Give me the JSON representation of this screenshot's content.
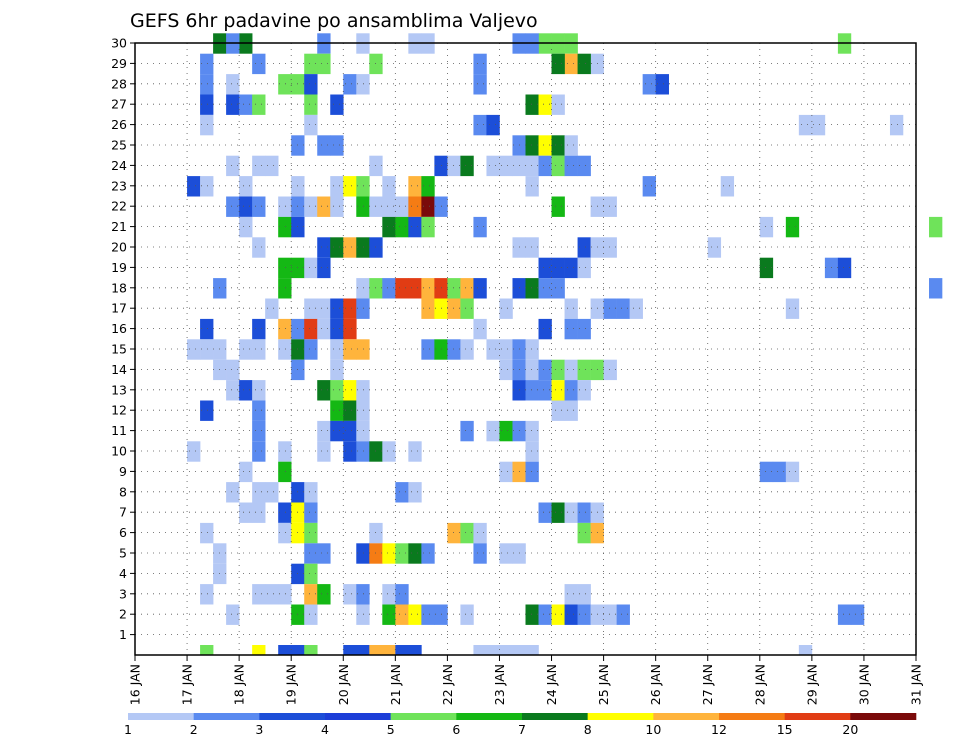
{
  "chart_data": {
    "type": "heatmap",
    "title": "GEFS 6hr padavine po ansamblima Valjevo",
    "x_tick_labels": [
      "16 JAN",
      "17 JAN",
      "18 JAN",
      "19 JAN",
      "20 JAN",
      "21 JAN",
      "22 JAN",
      "23 JAN",
      "24 JAN",
      "25 JAN",
      "26 JAN",
      "27 JAN",
      "28 JAN",
      "29 JAN",
      "30 JAN",
      "31 JAN"
    ],
    "y_tick_labels": [
      "1",
      "2",
      "3",
      "4",
      "5",
      "6",
      "7",
      "8",
      "9",
      "10",
      "11",
      "12",
      "13",
      "14",
      "15",
      "16",
      "17",
      "18",
      "19",
      "20",
      "21",
      "22",
      "23",
      "24",
      "25",
      "26",
      "27",
      "28",
      "29",
      "30"
    ],
    "x_unit": "6-hour steps from 16 JAN 00Z",
    "grid": true,
    "colorbar": {
      "tick_labels": [
        "1",
        "2",
        "3",
        "4",
        "5",
        "6",
        "7",
        "8",
        "10",
        "12",
        "15",
        "20"
      ],
      "colors": [
        "#b4c8f5",
        "#5a8af0",
        "#1c4ed8",
        "#1c3ed8",
        "#6fe35a",
        "#14b814",
        "#0a7a1e",
        "#ffff00",
        "#ffb43c",
        "#f57c14",
        "#e13c14",
        "#7a0a0a"
      ]
    },
    "levels": [
      1,
      2,
      3,
      4,
      5,
      6,
      7,
      8,
      10,
      12,
      15,
      20
    ],
    "cells": [
      [
        31,
        30,
        5
      ],
      [
        32,
        30,
        5
      ],
      [
        33,
        30,
        5
      ],
      [
        54,
        30,
        5
      ],
      [
        8,
        30,
        7
      ],
      [
        6,
        30,
        7
      ],
      [
        7,
        30,
        2
      ],
      [
        29,
        30,
        2
      ],
      [
        30,
        30,
        2
      ],
      [
        22,
        30,
        1
      ],
      [
        21,
        30,
        1
      ],
      [
        14,
        30,
        2
      ],
      [
        17,
        30,
        1
      ],
      [
        5,
        29,
        2
      ],
      [
        9,
        29,
        2
      ],
      [
        13,
        29,
        5
      ],
      [
        14,
        29,
        5
      ],
      [
        18,
        29,
        5
      ],
      [
        26,
        29,
        2
      ],
      [
        33,
        29,
        10
      ],
      [
        35,
        29,
        1
      ],
      [
        32,
        29,
        7
      ],
      [
        34,
        29,
        7
      ],
      [
        5,
        28,
        2
      ],
      [
        7,
        28,
        1
      ],
      [
        11,
        28,
        5
      ],
      [
        12,
        28,
        5
      ],
      [
        13,
        28,
        3
      ],
      [
        16,
        28,
        2
      ],
      [
        17,
        28,
        1
      ],
      [
        26,
        28,
        2
      ],
      [
        39,
        28,
        2
      ],
      [
        40,
        28,
        3
      ],
      [
        5,
        27,
        3
      ],
      [
        7,
        27,
        3
      ],
      [
        8,
        27,
        2
      ],
      [
        9,
        27,
        5
      ],
      [
        13,
        27,
        5
      ],
      [
        15,
        27,
        3
      ],
      [
        30,
        27,
        7
      ],
      [
        31,
        27,
        8
      ],
      [
        32,
        27,
        1
      ],
      [
        5,
        26,
        1
      ],
      [
        13,
        26,
        1
      ],
      [
        26,
        26,
        2
      ],
      [
        27,
        26,
        3
      ],
      [
        51,
        26,
        1
      ],
      [
        52,
        26,
        1
      ],
      [
        58,
        26,
        1
      ],
      [
        12,
        25,
        2
      ],
      [
        14,
        25,
        2
      ],
      [
        15,
        25,
        2
      ],
      [
        29,
        25,
        2
      ],
      [
        30,
        25,
        7
      ],
      [
        31,
        25,
        8
      ],
      [
        32,
        25,
        7
      ],
      [
        33,
        25,
        1
      ],
      [
        7,
        24,
        1
      ],
      [
        9,
        24,
        1
      ],
      [
        10,
        24,
        1
      ],
      [
        18,
        24,
        1
      ],
      [
        23,
        24,
        3
      ],
      [
        24,
        24,
        1
      ],
      [
        25,
        24,
        7
      ],
      [
        27,
        24,
        1
      ],
      [
        28,
        24,
        1
      ],
      [
        29,
        24,
        1
      ],
      [
        30,
        24,
        1
      ],
      [
        31,
        24,
        2
      ],
      [
        32,
        24,
        5
      ],
      [
        33,
        24,
        2
      ],
      [
        34,
        24,
        2
      ],
      [
        4,
        23,
        3
      ],
      [
        5,
        23,
        1
      ],
      [
        8,
        23,
        1
      ],
      [
        12,
        23,
        1
      ],
      [
        15,
        23,
        1
      ],
      [
        16,
        23,
        8
      ],
      [
        17,
        23,
        5
      ],
      [
        19,
        23,
        1
      ],
      [
        21,
        23,
        10
      ],
      [
        22,
        23,
        6
      ],
      [
        30,
        23,
        1
      ],
      [
        39,
        23,
        2
      ],
      [
        45,
        23,
        1
      ],
      [
        7,
        22,
        2
      ],
      [
        8,
        22,
        3
      ],
      [
        9,
        22,
        2
      ],
      [
        11,
        22,
        1
      ],
      [
        12,
        22,
        2
      ],
      [
        13,
        22,
        1
      ],
      [
        14,
        22,
        10
      ],
      [
        15,
        22,
        1
      ],
      [
        17,
        22,
        6
      ],
      [
        18,
        22,
        1
      ],
      [
        19,
        22,
        1
      ],
      [
        20,
        22,
        1
      ],
      [
        21,
        22,
        12
      ],
      [
        22,
        22,
        20
      ],
      [
        23,
        22,
        2
      ],
      [
        32,
        22,
        6
      ],
      [
        35,
        22,
        1
      ],
      [
        36,
        22,
        1
      ],
      [
        8,
        21,
        1
      ],
      [
        11,
        21,
        6
      ],
      [
        12,
        21,
        3
      ],
      [
        19,
        21,
        7
      ],
      [
        20,
        21,
        6
      ],
      [
        21,
        21,
        3
      ],
      [
        22,
        21,
        5
      ],
      [
        26,
        21,
        2
      ],
      [
        48,
        21,
        1
      ],
      [
        50,
        21,
        6
      ],
      [
        61,
        21,
        5
      ],
      [
        9,
        20,
        1
      ],
      [
        14,
        20,
        3
      ],
      [
        15,
        20,
        7
      ],
      [
        16,
        20,
        10
      ],
      [
        17,
        20,
        7
      ],
      [
        18,
        20,
        3
      ],
      [
        29,
        20,
        1
      ],
      [
        30,
        20,
        1
      ],
      [
        34,
        20,
        3
      ],
      [
        35,
        20,
        1
      ],
      [
        36,
        20,
        1
      ],
      [
        44,
        20,
        1
      ],
      [
        11,
        19,
        6
      ],
      [
        12,
        19,
        6
      ],
      [
        13,
        19,
        1
      ],
      [
        14,
        19,
        3
      ],
      [
        31,
        19,
        3
      ],
      [
        32,
        19,
        3
      ],
      [
        33,
        19,
        3
      ],
      [
        34,
        19,
        1
      ],
      [
        48,
        19,
        7
      ],
      [
        53,
        19,
        2
      ],
      [
        54,
        19,
        3
      ],
      [
        6,
        18,
        2
      ],
      [
        11,
        18,
        6
      ],
      [
        17,
        18,
        1
      ],
      [
        18,
        18,
        5
      ],
      [
        19,
        18,
        2
      ],
      [
        20,
        18,
        15
      ],
      [
        21,
        18,
        15
      ],
      [
        22,
        18,
        10
      ],
      [
        23,
        18,
        15
      ],
      [
        24,
        18,
        5
      ],
      [
        25,
        18,
        10
      ],
      [
        26,
        18,
        3
      ],
      [
        29,
        18,
        3
      ],
      [
        30,
        18,
        7
      ],
      [
        31,
        18,
        2
      ],
      [
        32,
        18,
        2
      ],
      [
        61,
        18,
        2
      ],
      [
        10,
        17,
        1
      ],
      [
        13,
        17,
        1
      ],
      [
        14,
        17,
        1
      ],
      [
        15,
        17,
        3
      ],
      [
        16,
        17,
        15
      ],
      [
        17,
        17,
        2
      ],
      [
        22,
        17,
        10
      ],
      [
        23,
        17,
        8
      ],
      [
        24,
        17,
        10
      ],
      [
        25,
        17,
        5
      ],
      [
        28,
        17,
        1
      ],
      [
        33,
        17,
        1
      ],
      [
        35,
        17,
        1
      ],
      [
        36,
        17,
        2
      ],
      [
        37,
        17,
        2
      ],
      [
        38,
        17,
        1
      ],
      [
        50,
        17,
        1
      ],
      [
        5,
        16,
        3
      ],
      [
        9,
        16,
        3
      ],
      [
        11,
        16,
        10
      ],
      [
        12,
        16,
        2
      ],
      [
        13,
        16,
        15
      ],
      [
        14,
        16,
        1
      ],
      [
        15,
        16,
        3
      ],
      [
        16,
        16,
        15
      ],
      [
        26,
        16,
        1
      ],
      [
        31,
        16,
        3
      ],
      [
        33,
        16,
        2
      ],
      [
        34,
        16,
        2
      ],
      [
        4,
        15,
        1
      ],
      [
        5,
        15,
        1
      ],
      [
        6,
        15,
        1
      ],
      [
        8,
        15,
        1
      ],
      [
        9,
        15,
        1
      ],
      [
        11,
        15,
        1
      ],
      [
        12,
        15,
        7
      ],
      [
        13,
        15,
        2
      ],
      [
        15,
        15,
        1
      ],
      [
        16,
        15,
        10
      ],
      [
        17,
        15,
        10
      ],
      [
        22,
        15,
        2
      ],
      [
        23,
        15,
        6
      ],
      [
        24,
        15,
        2
      ],
      [
        25,
        15,
        1
      ],
      [
        27,
        15,
        1
      ],
      [
        28,
        15,
        1
      ],
      [
        29,
        15,
        2
      ],
      [
        30,
        15,
        1
      ],
      [
        6,
        14,
        1
      ],
      [
        7,
        14,
        1
      ],
      [
        12,
        14,
        2
      ],
      [
        15,
        14,
        1
      ],
      [
        28,
        14,
        1
      ],
      [
        29,
        14,
        2
      ],
      [
        30,
        14,
        1
      ],
      [
        31,
        14,
        2
      ],
      [
        32,
        14,
        5
      ],
      [
        33,
        14,
        1
      ],
      [
        34,
        14,
        5
      ],
      [
        35,
        14,
        5
      ],
      [
        36,
        14,
        1
      ],
      [
        7,
        13,
        1
      ],
      [
        8,
        13,
        3
      ],
      [
        9,
        13,
        1
      ],
      [
        14,
        13,
        7
      ],
      [
        15,
        13,
        5
      ],
      [
        16,
        13,
        8
      ],
      [
        17,
        13,
        1
      ],
      [
        29,
        13,
        3
      ],
      [
        30,
        13,
        2
      ],
      [
        31,
        13,
        2
      ],
      [
        32,
        13,
        8
      ],
      [
        33,
        13,
        2
      ],
      [
        34,
        13,
        1
      ],
      [
        5,
        12,
        3
      ],
      [
        9,
        12,
        2
      ],
      [
        15,
        12,
        6
      ],
      [
        16,
        12,
        7
      ],
      [
        17,
        12,
        1
      ],
      [
        32,
        12,
        1
      ],
      [
        33,
        12,
        1
      ],
      [
        9,
        11,
        2
      ],
      [
        14,
        11,
        1
      ],
      [
        15,
        11,
        3
      ],
      [
        16,
        11,
        3
      ],
      [
        17,
        11,
        1
      ],
      [
        25,
        11,
        2
      ],
      [
        27,
        11,
        1
      ],
      [
        28,
        11,
        6
      ],
      [
        29,
        11,
        2
      ],
      [
        30,
        11,
        1
      ],
      [
        4,
        10,
        1
      ],
      [
        9,
        10,
        2
      ],
      [
        11,
        10,
        1
      ],
      [
        14,
        10,
        1
      ],
      [
        16,
        10,
        3
      ],
      [
        17,
        10,
        2
      ],
      [
        18,
        10,
        7
      ],
      [
        19,
        10,
        1
      ],
      [
        21,
        10,
        1
      ],
      [
        30,
        10,
        1
      ],
      [
        8,
        9,
        1
      ],
      [
        11,
        9,
        6
      ],
      [
        28,
        9,
        1
      ],
      [
        29,
        9,
        10
      ],
      [
        30,
        9,
        2
      ],
      [
        48,
        9,
        2
      ],
      [
        49,
        9,
        2
      ],
      [
        50,
        9,
        1
      ],
      [
        7,
        8,
        1
      ],
      [
        9,
        8,
        1
      ],
      [
        10,
        8,
        1
      ],
      [
        12,
        8,
        3
      ],
      [
        13,
        8,
        1
      ],
      [
        20,
        8,
        2
      ],
      [
        21,
        8,
        1
      ],
      [
        8,
        7,
        1
      ],
      [
        9,
        7,
        1
      ],
      [
        11,
        7,
        3
      ],
      [
        12,
        7,
        8
      ],
      [
        13,
        7,
        2
      ],
      [
        31,
        7,
        2
      ],
      [
        32,
        7,
        7
      ],
      [
        33,
        7,
        1
      ],
      [
        34,
        7,
        2
      ],
      [
        35,
        7,
        1
      ],
      [
        5,
        6,
        1
      ],
      [
        11,
        6,
        1
      ],
      [
        12,
        6,
        8
      ],
      [
        13,
        6,
        5
      ],
      [
        18,
        6,
        1
      ],
      [
        24,
        6,
        10
      ],
      [
        25,
        6,
        5
      ],
      [
        26,
        6,
        1
      ],
      [
        34,
        6,
        5
      ],
      [
        35,
        6,
        10
      ],
      [
        6,
        5,
        1
      ],
      [
        13,
        5,
        2
      ],
      [
        14,
        5,
        2
      ],
      [
        17,
        5,
        3
      ],
      [
        18,
        5,
        12
      ],
      [
        19,
        5,
        8
      ],
      [
        20,
        5,
        5
      ],
      [
        21,
        5,
        7
      ],
      [
        22,
        5,
        2
      ],
      [
        26,
        5,
        2
      ],
      [
        28,
        5,
        1
      ],
      [
        29,
        5,
        1
      ],
      [
        6,
        4,
        1
      ],
      [
        12,
        4,
        3
      ],
      [
        13,
        4,
        5
      ],
      [
        5,
        3,
        1
      ],
      [
        9,
        3,
        1
      ],
      [
        10,
        3,
        1
      ],
      [
        11,
        3,
        1
      ],
      [
        13,
        3,
        10
      ],
      [
        14,
        3,
        6
      ],
      [
        16,
        3,
        1
      ],
      [
        17,
        3,
        2
      ],
      [
        19,
        3,
        1
      ],
      [
        20,
        3,
        2
      ],
      [
        33,
        3,
        1
      ],
      [
        34,
        3,
        1
      ],
      [
        7,
        2,
        1
      ],
      [
        12,
        2,
        6
      ],
      [
        13,
        2,
        1
      ],
      [
        17,
        2,
        1
      ],
      [
        19,
        2,
        6
      ],
      [
        20,
        2,
        10
      ],
      [
        21,
        2,
        8
      ],
      [
        22,
        2,
        2
      ],
      [
        23,
        2,
        2
      ],
      [
        25,
        2,
        1
      ],
      [
        30,
        2,
        7
      ],
      [
        31,
        2,
        2
      ],
      [
        32,
        2,
        8
      ],
      [
        33,
        2,
        3
      ],
      [
        34,
        2,
        2
      ],
      [
        35,
        2,
        1
      ],
      [
        36,
        2,
        1
      ],
      [
        37,
        2,
        2
      ],
      [
        54,
        2,
        2
      ],
      [
        55,
        2,
        2
      ]
    ],
    "bottom_row_cells": [
      [
        5,
        5
      ],
      [
        9,
        8
      ],
      [
        11,
        3
      ],
      [
        12,
        3
      ],
      [
        13,
        5
      ],
      [
        16,
        3
      ],
      [
        17,
        3
      ],
      [
        18,
        10
      ],
      [
        19,
        10
      ],
      [
        20,
        3
      ],
      [
        21,
        3
      ],
      [
        26,
        1
      ],
      [
        27,
        1
      ],
      [
        28,
        1
      ],
      [
        29,
        1
      ],
      [
        30,
        1
      ],
      [
        51,
        1
      ]
    ]
  }
}
